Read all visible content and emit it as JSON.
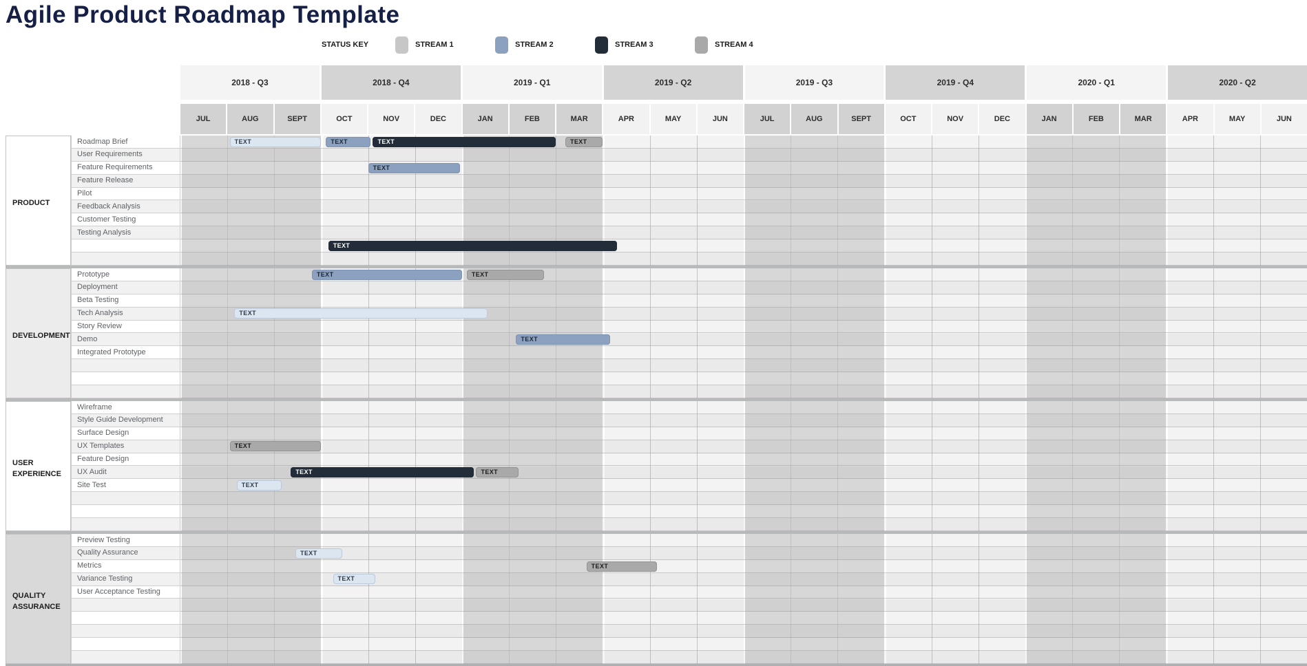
{
  "title": "Agile Product Roadmap Template",
  "status_key": {
    "label": "STATUS KEY",
    "items": [
      {
        "label": "STREAM 1",
        "color": "#c7c7c7"
      },
      {
        "label": "STREAM 2",
        "color": "#8ba1bf"
      },
      {
        "label": "STREAM 3",
        "color": "#232d3a"
      },
      {
        "label": "STREAM 4",
        "color": "#a9a9a9"
      }
    ]
  },
  "timeline": {
    "quarters": [
      "2018 - Q3",
      "2018 - Q4",
      "2019 - Q1",
      "2019 - Q2",
      "2019 - Q3",
      "2019 - Q4",
      "2020 - Q1",
      "2020 - Q2"
    ],
    "months": [
      "JUL",
      "AUG",
      "SEPT",
      "OCT",
      "NOV",
      "DEC",
      "JAN",
      "FEB",
      "MAR",
      "APR",
      "MAY",
      "JUN",
      "JUL",
      "AUG",
      "SEPT",
      "OCT",
      "NOV",
      "DEC",
      "JAN",
      "FEB",
      "MAR",
      "APR",
      "MAY",
      "JUN"
    ],
    "months_per_quarter": 3
  },
  "palette": {
    "light": {
      "bg": "#dce6f1",
      "text": "#2e3b4a",
      "border": "#bcc9da"
    },
    "stream2": {
      "bg": "#8ba1bf",
      "text": "#1d2734",
      "border": "#7e94b2"
    },
    "stream3": {
      "bg": "#232d3a",
      "text": "#ffffff",
      "border": "#232d3a"
    },
    "stream4": {
      "bg": "#a9a9a9",
      "text": "#1d1d1d",
      "border": "#949494"
    }
  },
  "bar_label": "TEXT",
  "groups": [
    {
      "name": "PRODUCT",
      "label_bg": "#ffffff",
      "rows": [
        {
          "label": "Roadmap Brief",
          "bars": [
            {
              "color": "light",
              "start": 1.05,
              "end": 3.0
            },
            {
              "color": "stream2",
              "start": 3.1,
              "end": 4.05
            },
            {
              "color": "stream3",
              "start": 4.1,
              "end": 8.0
            },
            {
              "color": "stream4",
              "start": 8.2,
              "end": 9.0
            }
          ]
        },
        {
          "label": "User Requirements",
          "bars": []
        },
        {
          "label": "Feature Requirements",
          "bars": [
            {
              "color": "stream2",
              "start": 4.0,
              "end": 5.95
            }
          ]
        },
        {
          "label": "Feature Release",
          "bars": []
        },
        {
          "label": "Pilot",
          "bars": []
        },
        {
          "label": "Feedback Analysis",
          "bars": []
        },
        {
          "label": "Customer Testing",
          "bars": []
        },
        {
          "label": "Testing Analysis",
          "bars": []
        },
        {
          "label": "",
          "bars": [
            {
              "color": "stream3",
              "start": 3.15,
              "end": 9.3
            }
          ]
        },
        {
          "label": "",
          "bars": []
        }
      ]
    },
    {
      "name": "DEVELOPMENT",
      "label_bg": "#ececec",
      "rows": [
        {
          "label": "Prototype",
          "bars": [
            {
              "color": "stream2",
              "start": 2.8,
              "end": 6.0
            },
            {
              "color": "stream4",
              "start": 6.1,
              "end": 7.75
            }
          ]
        },
        {
          "label": "Deployment",
          "bars": []
        },
        {
          "label": "Beta Testing",
          "bars": []
        },
        {
          "label": "Tech Analysis",
          "bars": [
            {
              "color": "light",
              "start": 1.15,
              "end": 6.55
            }
          ]
        },
        {
          "label": "Story Review",
          "bars": []
        },
        {
          "label": "Demo",
          "bars": [
            {
              "color": "stream2",
              "start": 7.15,
              "end": 9.15
            }
          ]
        },
        {
          "label": "Integrated Prototype",
          "bars": []
        },
        {
          "label": "",
          "bars": []
        },
        {
          "label": "",
          "bars": []
        },
        {
          "label": "",
          "bars": []
        }
      ]
    },
    {
      "name": "USER EXPERIENCE",
      "label_bg": "#ffffff",
      "rows": [
        {
          "label": "Wireframe",
          "bars": []
        },
        {
          "label": "Style Guide Development",
          "bars": []
        },
        {
          "label": "Surface Design",
          "bars": []
        },
        {
          "label": "UX Templates",
          "bars": [
            {
              "color": "stream4",
              "start": 1.05,
              "end": 3.0
            }
          ]
        },
        {
          "label": "Feature Design",
          "bars": []
        },
        {
          "label": "UX Audit",
          "bars": [
            {
              "color": "stream3",
              "start": 2.35,
              "end": 6.25
            },
            {
              "color": "stream4",
              "start": 6.3,
              "end": 7.2
            }
          ]
        },
        {
          "label": "Site Test",
          "bars": [
            {
              "color": "light",
              "start": 1.2,
              "end": 2.15
            }
          ]
        },
        {
          "label": "",
          "bars": []
        },
        {
          "label": "",
          "bars": []
        },
        {
          "label": "",
          "bars": []
        }
      ]
    },
    {
      "name": "QUALITY ASSURANCE",
      "label_bg": "#d9d9d9",
      "rows": [
        {
          "label": "Preview Testing",
          "bars": []
        },
        {
          "label": "Quality Assurance",
          "bars": [
            {
              "color": "light",
              "start": 2.45,
              "end": 3.45
            }
          ]
        },
        {
          "label": "Metrics",
          "bars": [
            {
              "color": "stream4",
              "start": 8.65,
              "end": 10.15
            }
          ]
        },
        {
          "label": "Variance Testing",
          "bars": [
            {
              "color": "light",
              "start": 3.25,
              "end": 4.15
            }
          ]
        },
        {
          "label": "User Acceptance Testing",
          "bars": []
        },
        {
          "label": "",
          "bars": []
        },
        {
          "label": "",
          "bars": []
        },
        {
          "label": "",
          "bars": []
        },
        {
          "label": "",
          "bars": []
        },
        {
          "label": "",
          "bars": []
        }
      ]
    }
  ]
}
